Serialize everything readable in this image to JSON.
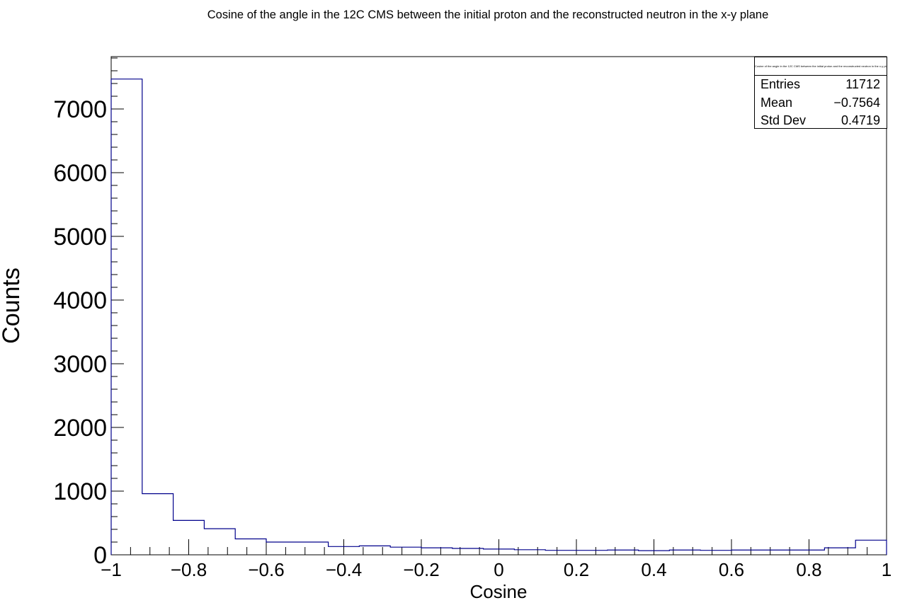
{
  "title": "Cosine of the angle in the  12C CMS between the initial proton and the reconstructed neutron in the x-y plane",
  "stats": {
    "title": "Cosine of the angle in the  12C CMS between the initial proton and the reconstructed neutron in the x-y plane",
    "rows": [
      {
        "label": "Entries",
        "value": "11712"
      },
      {
        "label": "Mean",
        "value": "−0.7564"
      },
      {
        "label": "Std Dev",
        "value": "0.4719"
      }
    ]
  },
  "chart_data": {
    "type": "bar",
    "histogram": true,
    "title": "Cosine of the angle in the  12C CMS between the initial proton and the reconstructed neutron in the x-y plane",
    "xlabel": "Cosine",
    "ylabel": "Counts",
    "xlim": [
      -1,
      1
    ],
    "ylim": [
      0,
      7800
    ],
    "bin_edges": [
      -1,
      -0.92,
      -0.84,
      -0.76,
      -0.68,
      -0.6,
      -0.52,
      -0.44,
      -0.36,
      -0.28,
      -0.2,
      -0.12,
      -0.04,
      0.04,
      0.12,
      0.2,
      0.28,
      0.36,
      0.44,
      0.52,
      0.6,
      0.68,
      0.76,
      0.84,
      0.92,
      1
    ],
    "values": [
      7470,
      960,
      540,
      410,
      250,
      200,
      200,
      130,
      140,
      120,
      110,
      100,
      90,
      80,
      70,
      70,
      75,
      65,
      75,
      70,
      75,
      75,
      75,
      110,
      230
    ],
    "x_ticks": [
      -1,
      -0.8,
      -0.6,
      -0.4,
      -0.2,
      0,
      0.2,
      0.4,
      0.6,
      0.8,
      1
    ],
    "x_tick_labels": [
      "−1",
      "−0.8",
      "−0.6",
      "−0.4",
      "−0.2",
      "0",
      "0.2",
      "0.4",
      "0.6",
      "0.8",
      "1"
    ],
    "y_ticks": [
      0,
      1000,
      2000,
      3000,
      4000,
      5000,
      6000,
      7000
    ],
    "y_tick_labels": [
      "0",
      "1000",
      "2000",
      "3000",
      "4000",
      "5000",
      "6000",
      "7000"
    ],
    "line_color": "#00008b",
    "grid": false
  }
}
